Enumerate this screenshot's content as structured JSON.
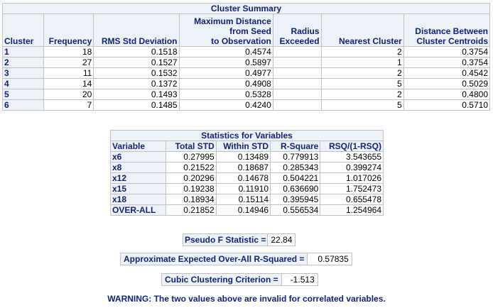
{
  "cluster_summary": {
    "title": "Cluster Summary",
    "headers": {
      "cluster": "Cluster",
      "frequency": "Frequency",
      "rms": "RMS Std Deviation",
      "maxdist_1": "Maximum Distance",
      "maxdist_2": "from Seed",
      "maxdist_3": "to Observation",
      "radius_1": "Radius",
      "radius_2": "Exceeded",
      "nearest": "Nearest Cluster",
      "dist_1": "Distance Between",
      "dist_2": "Cluster Centroids"
    },
    "rows": [
      {
        "cluster": "1",
        "frequency": "18",
        "rms": "0.1518",
        "maxdist": "0.4574",
        "radius": "",
        "nearest": "2",
        "dist": "0.3754"
      },
      {
        "cluster": "2",
        "frequency": "27",
        "rms": "0.1527",
        "maxdist": "0.5897",
        "radius": "",
        "nearest": "1",
        "dist": "0.3754"
      },
      {
        "cluster": "3",
        "frequency": "11",
        "rms": "0.1532",
        "maxdist": "0.4977",
        "radius": "",
        "nearest": "2",
        "dist": "0.4542"
      },
      {
        "cluster": "4",
        "frequency": "14",
        "rms": "0.1372",
        "maxdist": "0.4908",
        "radius": "",
        "nearest": "5",
        "dist": "0.5029"
      },
      {
        "cluster": "5",
        "frequency": "20",
        "rms": "0.1493",
        "maxdist": "0.5328",
        "radius": "",
        "nearest": "2",
        "dist": "0.4800"
      },
      {
        "cluster": "6",
        "frequency": "7",
        "rms": "0.1485",
        "maxdist": "0.4240",
        "radius": "",
        "nearest": "5",
        "dist": "0.5710"
      }
    ]
  },
  "stats_vars": {
    "title": "Statistics for Variables",
    "headers": {
      "variable": "Variable",
      "total_std": "Total STD",
      "within_std": "Within STD",
      "r_square": "R-Square",
      "rsq_ratio": "RSQ/(1-RSQ)"
    },
    "rows": [
      {
        "variable": "x6",
        "total_std": "0.27995",
        "within_std": "0.13489",
        "r_square": "0.779913",
        "rsq_ratio": "3.543655"
      },
      {
        "variable": "x8",
        "total_std": "0.21522",
        "within_std": "0.18687",
        "r_square": "0.285343",
        "rsq_ratio": "0.399274"
      },
      {
        "variable": "x12",
        "total_std": "0.20296",
        "within_std": "0.14678",
        "r_square": "0.504221",
        "rsq_ratio": "1.017026"
      },
      {
        "variable": "x15",
        "total_std": "0.19238",
        "within_std": "0.11910",
        "r_square": "0.636690",
        "rsq_ratio": "1.752473"
      },
      {
        "variable": "x18",
        "total_std": "0.18934",
        "within_std": "0.15114",
        "r_square": "0.395945",
        "rsq_ratio": "0.655478"
      },
      {
        "variable": "OVER-ALL",
        "total_std": "0.21852",
        "within_std": "0.14946",
        "r_square": "0.556534",
        "rsq_ratio": "1.254964"
      }
    ]
  },
  "pseudo_f": {
    "label": "Pseudo F Statistic =",
    "value": "22.84"
  },
  "approx_r2": {
    "label": "Approximate Expected Over-All R-Squared =",
    "value": "0.57835"
  },
  "ccc": {
    "label": "Cubic Clustering Criterion =",
    "value": "-1.513"
  },
  "warning": "WARNING: The two values above are invalid for correlated variables.",
  "colors": {
    "header_bg": "#edf2f9",
    "header_text": "#112277",
    "border": "#c1c1c1"
  }
}
